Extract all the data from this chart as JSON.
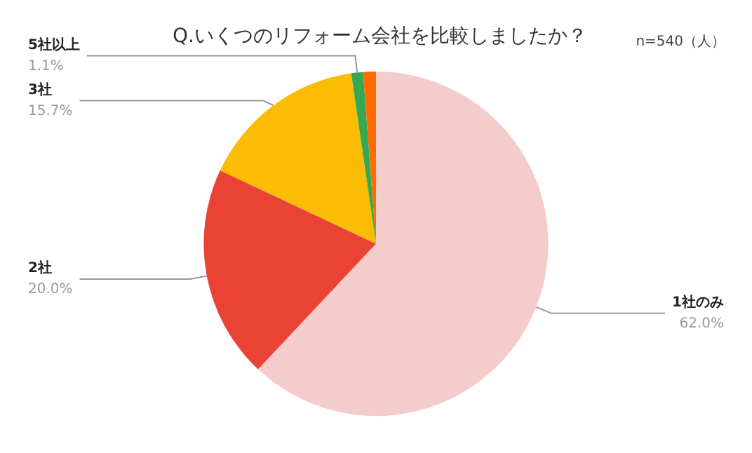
{
  "chart_data": {
    "type": "pie",
    "title": "Q.いくつのリフォーム会社を比較しましたか？",
    "subtitle": "n=540（人）",
    "categories": [
      "1社のみ",
      "2社",
      "3社",
      "5社以上",
      null
    ],
    "values": [
      62.0,
      20.0,
      15.7,
      1.1,
      1.2
    ],
    "colors": [
      "#f4cccc",
      "#ea4335",
      "#fbbc04",
      "#34a853",
      "#ff6d01"
    ],
    "value_labels": [
      "62.0%",
      "20.0%",
      "15.7%",
      "1.1%",
      null
    ],
    "legend": false
  }
}
